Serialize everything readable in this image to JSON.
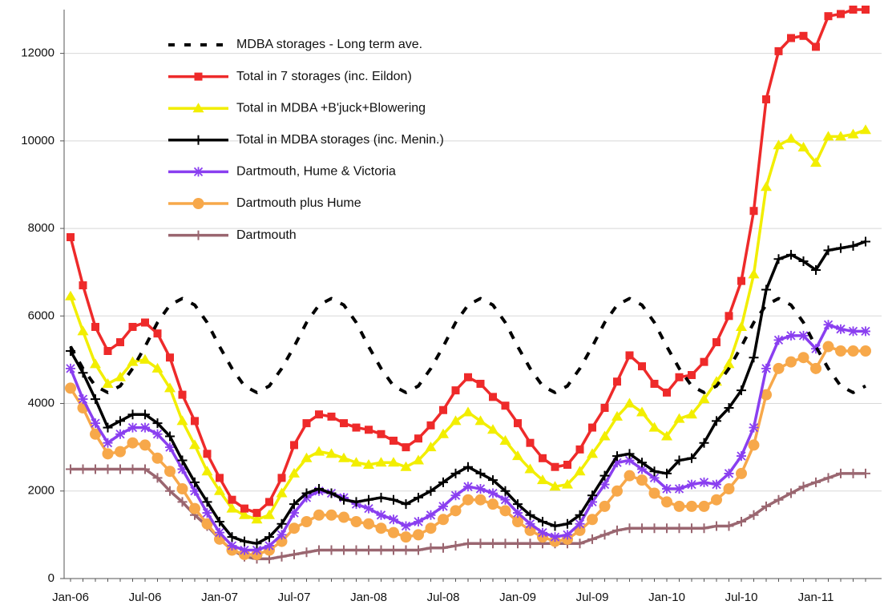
{
  "chart_data": {
    "type": "line",
    "categories": [
      "Jan-06",
      null,
      null,
      null,
      null,
      null,
      "Jul-06",
      null,
      null,
      null,
      null,
      null,
      "Jan-07",
      null,
      null,
      null,
      null,
      null,
      "Jul-07",
      null,
      null,
      null,
      null,
      null,
      "Jan-08",
      null,
      null,
      null,
      null,
      null,
      "Jul-08",
      null,
      null,
      null,
      null,
      null,
      "Jan-09",
      null,
      null,
      null,
      null,
      null,
      "Jul-09",
      null,
      null,
      null,
      null,
      null,
      "Jan-10",
      null,
      null,
      null,
      null,
      null,
      "Jul-10",
      null,
      null,
      null,
      null,
      null,
      "Jan-11",
      null,
      null,
      null,
      null
    ],
    "ylim": [
      0,
      13000
    ],
    "yticks": [
      0,
      2000,
      4000,
      6000,
      8000,
      10000,
      12000
    ],
    "grid": true,
    "legend": "upper left",
    "series": [
      {
        "name": "MDBA storages - Long term ave.",
        "color": "#000000",
        "dashed": true,
        "marker": "none",
        "values": [
          5300,
          4800,
          4400,
          4250,
          4400,
          4800,
          5300,
          5850,
          6250,
          6400,
          6250,
          5850,
          5300,
          4800,
          4400,
          4250,
          4400,
          4800,
          5300,
          5850,
          6250,
          6400,
          6250,
          5850,
          5300,
          4800,
          4400,
          4250,
          4400,
          4800,
          5300,
          5850,
          6250,
          6400,
          6250,
          5850,
          5300,
          4800,
          4400,
          4250,
          4400,
          4800,
          5300,
          5850,
          6250,
          6400,
          6250,
          5850,
          5300,
          4800,
          4400,
          4250,
          4400,
          4800,
          5300,
          5850,
          6250,
          6400,
          6250,
          5850,
          5300,
          4800,
          4400,
          4250,
          4400
        ]
      },
      {
        "name": "Total in 7 storages (inc. Eildon)",
        "color": "#ee2a2a",
        "marker": "square",
        "values": [
          7800,
          6700,
          5750,
          5200,
          5400,
          5750,
          5850,
          5600,
          5050,
          4200,
          3600,
          2850,
          2300,
          1800,
          1600,
          1500,
          1750,
          2300,
          3050,
          3550,
          3750,
          3700,
          3550,
          3450,
          3400,
          3300,
          3150,
          3000,
          3200,
          3500,
          3850,
          4300,
          4600,
          4450,
          4150,
          3950,
          3550,
          3100,
          2750,
          2550,
          2600,
          2950,
          3450,
          3900,
          4500,
          5100,
          4850,
          4450,
          4250,
          4600,
          4650,
          4950,
          5400,
          6000,
          6800,
          8400,
          10950,
          12050,
          12350,
          12400,
          12150,
          12850,
          12900,
          13000,
          13000
        ]
      },
      {
        "name": "Total in MDBA +B'juck+Blowering",
        "color": "#f2ee00",
        "marker": "triangle",
        "values": [
          6450,
          5650,
          4900,
          4450,
          4600,
          4950,
          5000,
          4800,
          4350,
          3600,
          3050,
          2450,
          2000,
          1600,
          1450,
          1350,
          1450,
          1950,
          2400,
          2750,
          2900,
          2850,
          2750,
          2650,
          2600,
          2650,
          2650,
          2550,
          2700,
          3000,
          3300,
          3600,
          3800,
          3600,
          3400,
          3150,
          2800,
          2500,
          2250,
          2100,
          2150,
          2450,
          2850,
          3250,
          3700,
          4000,
          3800,
          3450,
          3250,
          3650,
          3750,
          4100,
          4500,
          4900,
          5750,
          6950,
          8950,
          9900,
          10050,
          9850,
          9500,
          10100,
          10100,
          10150,
          10250
        ]
      },
      {
        "name": "Total in MDBA storages (inc. Menin.)",
        "color": "#000000",
        "marker": "plus",
        "values": [
          5200,
          4700,
          4100,
          3450,
          3600,
          3750,
          3750,
          3550,
          3250,
          2700,
          2200,
          1750,
          1300,
          950,
          850,
          800,
          950,
          1250,
          1700,
          1950,
          2050,
          1950,
          1800,
          1750,
          1800,
          1850,
          1800,
          1700,
          1850,
          2000,
          2200,
          2400,
          2550,
          2400,
          2250,
          2000,
          1700,
          1450,
          1300,
          1200,
          1250,
          1450,
          1900,
          2350,
          2800,
          2850,
          2650,
          2450,
          2400,
          2700,
          2750,
          3100,
          3600,
          3900,
          4300,
          5050,
          6600,
          7300,
          7400,
          7250,
          7050,
          7500,
          7550,
          7600,
          7700
        ]
      },
      {
        "name": "Dartmouth, Hume & Victoria",
        "color": "#8a3ff0",
        "marker": "asterisk",
        "values": [
          4800,
          4100,
          3550,
          3100,
          3300,
          3450,
          3450,
          3300,
          3000,
          2500,
          2000,
          1500,
          1050,
          750,
          650,
          650,
          750,
          1000,
          1500,
          1850,
          2000,
          1950,
          1850,
          1700,
          1600,
          1450,
          1350,
          1200,
          1300,
          1450,
          1650,
          1900,
          2100,
          2050,
          1950,
          1800,
          1500,
          1250,
          1050,
          950,
          1000,
          1250,
          1750,
          2150,
          2650,
          2700,
          2500,
          2300,
          2050,
          2050,
          2150,
          2200,
          2150,
          2400,
          2800,
          3450,
          4800,
          5450,
          5550,
          5550,
          5250,
          5800,
          5700,
          5650,
          5650
        ]
      },
      {
        "name": "Dartmouth plus Hume",
        "color": "#f7a84a",
        "marker": "circle",
        "values": [
          4350,
          3900,
          3300,
          2850,
          2900,
          3100,
          3050,
          2750,
          2450,
          2050,
          1600,
          1250,
          900,
          650,
          550,
          550,
          650,
          850,
          1150,
          1300,
          1450,
          1450,
          1400,
          1300,
          1250,
          1150,
          1050,
          950,
          1000,
          1150,
          1350,
          1550,
          1800,
          1800,
          1700,
          1550,
          1300,
          1100,
          950,
          850,
          900,
          1100,
          1350,
          1650,
          2000,
          2350,
          2250,
          1950,
          1750,
          1650,
          1650,
          1650,
          1800,
          2050,
          2400,
          3050,
          4200,
          4800,
          4950,
          5050,
          4800,
          5300,
          5200,
          5200,
          5200
        ]
      },
      {
        "name": "Dartmouth",
        "color": "#9a6670",
        "marker": "plus",
        "values": [
          2500,
          2500,
          2500,
          2500,
          2500,
          2500,
          2500,
          2300,
          2000,
          1750,
          1450,
          1200,
          900,
          650,
          500,
          450,
          450,
          500,
          550,
          600,
          650,
          650,
          650,
          650,
          650,
          650,
          650,
          650,
          650,
          700,
          700,
          750,
          800,
          800,
          800,
          800,
          800,
          800,
          800,
          800,
          800,
          800,
          900,
          1000,
          1100,
          1150,
          1150,
          1150,
          1150,
          1150,
          1150,
          1150,
          1200,
          1200,
          1300,
          1450,
          1650,
          1800,
          1950,
          2100,
          2200,
          2300,
          2400,
          2400,
          2400
        ]
      }
    ]
  }
}
